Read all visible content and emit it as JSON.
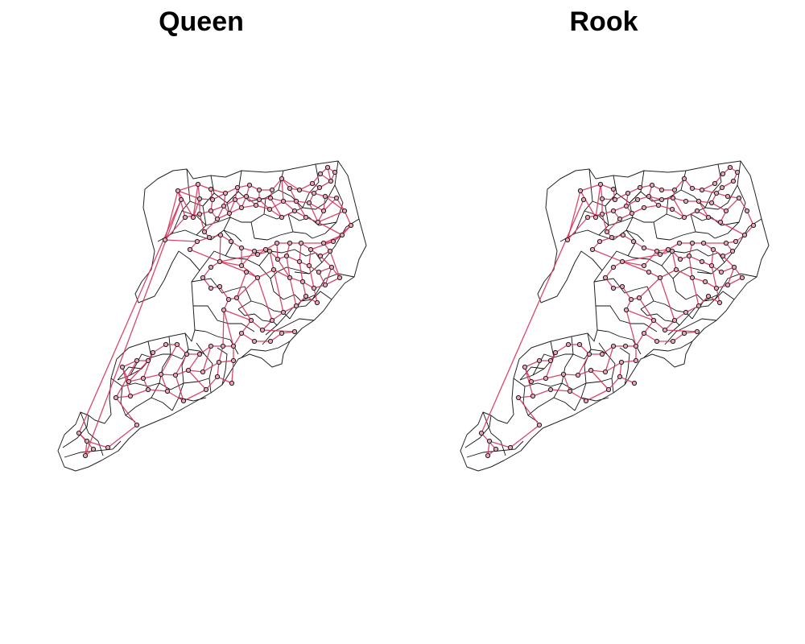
{
  "figure": {
    "panels": [
      {
        "id": "queen",
        "title": "Queen"
      },
      {
        "id": "rook",
        "title": "Rook"
      }
    ]
  },
  "colors": {
    "background": "#ffffff",
    "boundary": "#111111",
    "neighbor_link": "#d6335a",
    "centroid_fill": "#e7a7b8",
    "centroid_stroke": "#1a1a1a"
  },
  "legend": []
}
